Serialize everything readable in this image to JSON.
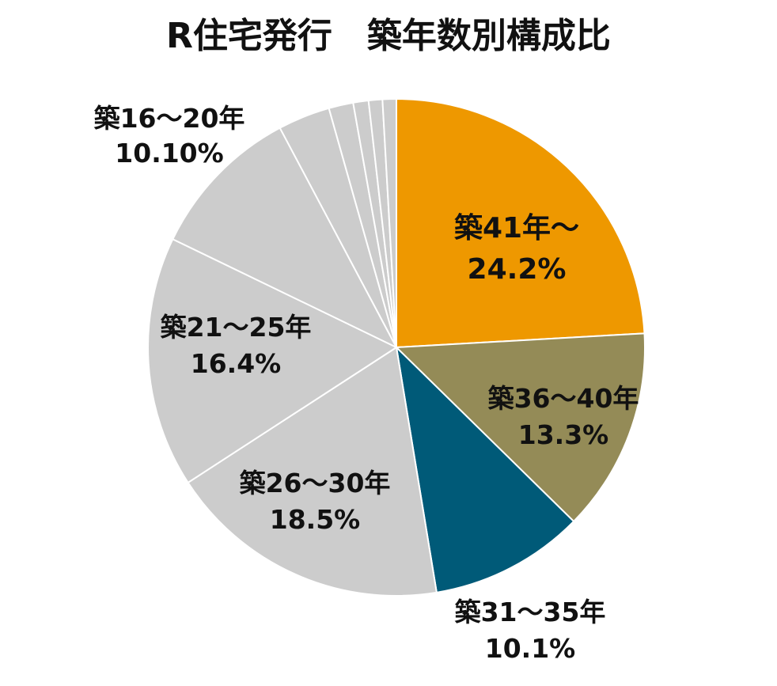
{
  "chart_data": {
    "type": "pie",
    "title": "R住宅発行　築年数別構成比",
    "start_angle_deg": 0,
    "direction": "clockwise",
    "slices": [
      {
        "label": "築41年～",
        "percent_label": "24.2%",
        "value": 24.2,
        "color": "#EE9800"
      },
      {
        "label": "築36～40年",
        "percent_label": "13.3%",
        "value": 13.3,
        "color": "#948B57"
      },
      {
        "label": "築31～35年",
        "percent_label": "10.1%",
        "value": 10.1,
        "color": "#005A78"
      },
      {
        "label": "築26～30年",
        "percent_label": "18.5%",
        "value": 18.5,
        "color": "#CCCCCC"
      },
      {
        "label": "築21～25年",
        "percent_label": "16.4%",
        "value": 16.4,
        "color": "#CCCCCC"
      },
      {
        "label": "築16～20年",
        "percent_label": "10.10%",
        "value": 10.1,
        "color": "#CCCCCC"
      },
      {
        "label": "",
        "percent_label": "",
        "value": 3.4,
        "color": "#CCCCCC"
      },
      {
        "label": "",
        "percent_label": "",
        "value": 1.6,
        "color": "#CCCCCC"
      },
      {
        "label": "",
        "percent_label": "",
        "value": 1.0,
        "color": "#CCCCCC"
      },
      {
        "label": "",
        "percent_label": "",
        "value": 0.9,
        "color": "#CCCCCC"
      },
      {
        "label": "",
        "percent_label": "",
        "value": 0.9,
        "color": "#CCCCCC"
      }
    ],
    "slice_border_color": "#FFFFFF"
  }
}
